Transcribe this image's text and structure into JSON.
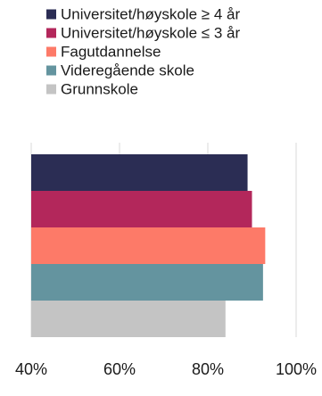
{
  "chart_data": {
    "type": "bar",
    "orientation": "horizontal",
    "title": "",
    "xlabel": "",
    "ylabel": "",
    "xlim": [
      0.4,
      1.0
    ],
    "x_ticks": [
      {
        "value": 0.4,
        "label": "40%"
      },
      {
        "value": 0.6,
        "label": "60%"
      },
      {
        "value": 0.8,
        "label": "80%"
      },
      {
        "value": 1.0,
        "label": "100%"
      }
    ],
    "grid": "vertical",
    "legend_position": "top-left",
    "series": [
      {
        "name": "Universitet/høyskole ≥ 4 år",
        "value": 0.89,
        "color": "#2b2d54"
      },
      {
        "name": "Universitet/høyskole ≤ 3 år",
        "value": 0.9,
        "color": "#b3275b"
      },
      {
        "name": "Fagutdannelse",
        "value": 0.93,
        "color": "#fd7a68"
      },
      {
        "name": "Videregående skole",
        "value": 0.925,
        "color": "#64949f"
      },
      {
        "name": "Grunnskole",
        "value": 0.84,
        "color": "#c4c4c4"
      }
    ]
  }
}
